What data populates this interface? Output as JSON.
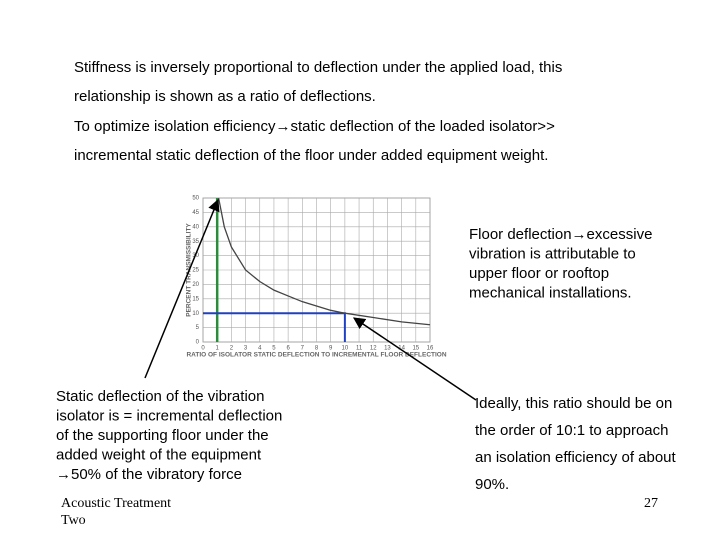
{
  "slide": {
    "paragraphs": [
      {
        "lines": [
          "Stiffness is inversely proportional to deflection under the applied load, this",
          "relationship is shown as a ratio of deflections."
        ]
      },
      {
        "lines": [
          "To optimize isolation efficiency→static deflection of the loaded isolator>>",
          "incremental static deflection of the floor under added equipment weight."
        ]
      }
    ],
    "callouts": [
      {
        "lines": [
          "Floor deflection→excessive",
          "vibration is attributable to",
          "upper floor or rooftop",
          "mechanical installations."
        ]
      },
      {
        "lines": [
          "Static deflection of the vibration",
          "isolator is = incremental deflection",
          "of the supporting floor under the",
          "added weight of the equipment",
          "→50% of the vibratory force"
        ]
      },
      {
        "lines": [
          "Ideally, this ratio should be on",
          "the order of 10:1 to approach",
          "an isolation efficiency of about",
          "90%."
        ]
      }
    ],
    "footer": {
      "lines": [
        "Acoustic Treatment",
        "Two"
      ]
    },
    "page_number": "27"
  },
  "chart_data": {
    "type": "line",
    "x_label": "RATIO OF ISOLATOR STATIC DEFLECTION TO INCREMENTAL FLOOR DEFLECTION",
    "y_label": "PERCENT TRANSMISSIBILITY",
    "x": [
      1.1,
      1.5,
      2,
      3,
      4,
      5,
      6,
      7,
      8,
      9,
      10,
      12,
      14,
      16
    ],
    "series": [
      {
        "color": "#444444",
        "values": [
          50,
          40,
          33,
          25,
          21,
          18,
          16,
          14,
          12.5,
          11,
          10,
          8.5,
          7,
          6
        ]
      }
    ],
    "xlim": [
      0,
      16
    ],
    "ylim": [
      0,
      50
    ],
    "xticks": [
      0,
      1,
      2,
      3,
      4,
      5,
      6,
      7,
      8,
      9,
      10,
      11,
      12,
      13,
      14,
      15,
      16
    ],
    "yticks": [
      0,
      5,
      10,
      15,
      20,
      25,
      30,
      35,
      40,
      45,
      50
    ],
    "grid": true,
    "min_ratio_line": {
      "x": 1,
      "color": "#2e8b3e"
    },
    "target_point": {
      "x": 10,
      "y": 10,
      "color": "#2040c0"
    }
  }
}
